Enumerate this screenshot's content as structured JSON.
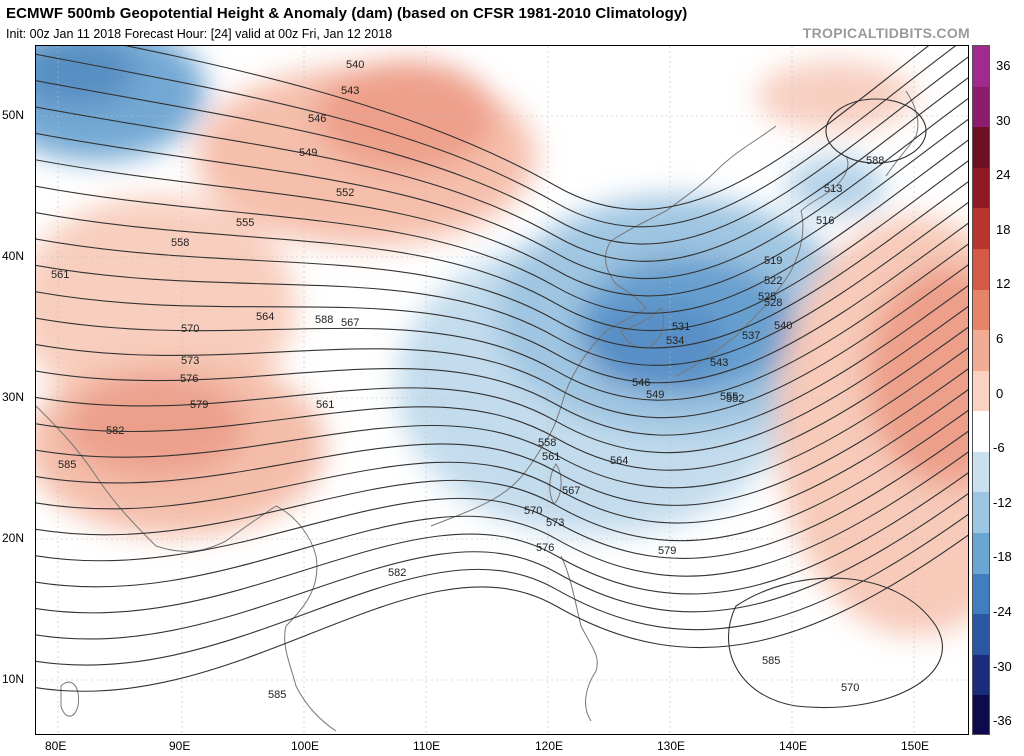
{
  "header": {
    "title": "ECMWF 500mb Geopotential Height & Anomaly (dam) (based on CFSR 1981-2010 Climatology)",
    "subtitle": "Init: 00z Jan 11 2018   Forecast Hour: [24]   valid at 00z Fri, Jan 12 2018",
    "brand": "TROPICALTIDBITS.COM"
  },
  "map": {
    "lon_labels": [
      "80E",
      "90E",
      "100E",
      "110E",
      "120E",
      "130E",
      "140E",
      "150E"
    ],
    "lat_labels": [
      "50N",
      "40N",
      "30N",
      "20N",
      "10N"
    ],
    "contour_labels": [
      "540",
      "543",
      "546",
      "549",
      "552",
      "555",
      "558",
      "561",
      "564",
      "567",
      "570",
      "573",
      "576",
      "579",
      "582",
      "585",
      "588",
      "513",
      "516",
      "519",
      "522",
      "525",
      "528",
      "531",
      "534",
      "537",
      "540",
      "543",
      "546",
      "549",
      "552",
      "555",
      "558",
      "561",
      "564",
      "567",
      "570",
      "573",
      "576",
      "579",
      "582",
      "585",
      "585",
      "588",
      "561",
      "570"
    ],
    "colors": {
      "positive": "#e8806a",
      "negative": "#4a90c8",
      "land_line": "#8a8a8a",
      "contour": "#333333"
    }
  },
  "colorbar": {
    "labels": [
      "36",
      "30",
      "24",
      "18",
      "12",
      "6",
      "0",
      "-6",
      "-12",
      "-18",
      "-24",
      "-30",
      "-36"
    ],
    "colors": [
      "#0d0a4e",
      "#1a2d7a",
      "#2a56a3",
      "#3f7fbf",
      "#6aa6d4",
      "#9cc6e3",
      "#c9e0ef",
      "#ffffff",
      "#f9d2c2",
      "#f2ac93",
      "#e58468",
      "#d55a45",
      "#b8342e",
      "#8e1a26",
      "#6e0f24",
      "#8b1c6e",
      "#a02b8c"
    ]
  }
}
